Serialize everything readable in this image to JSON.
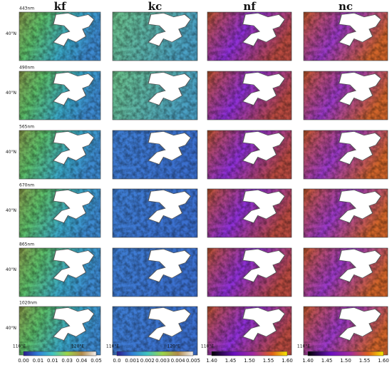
{
  "columns": [
    {
      "title": "kf"
    },
    {
      "title": "kc"
    },
    {
      "title": "nf"
    },
    {
      "title": "nc"
    }
  ],
  "rows": [
    {
      "label": "443nm"
    },
    {
      "label": "490nm"
    },
    {
      "label": "565nm"
    },
    {
      "label": "670nm"
    },
    {
      "label": "865nm"
    },
    {
      "label": "1020nm"
    }
  ],
  "lat_label": "40°N",
  "lon_labels": [
    "110°E",
    "120°E"
  ],
  "colorbars": [
    {
      "ticks": [
        "0.00",
        "0.01",
        "0.01",
        "0.03",
        "0.04",
        "0.05"
      ]
    },
    {
      "ticks": [
        "0.0",
        "0.001",
        "0.002",
        "0.003",
        "0.004",
        "0.005"
      ]
    },
    {
      "ticks": [
        "1.40",
        "1.45",
        "1.50",
        "1.55",
        "1.60"
      ]
    },
    {
      "ticks": [
        "1.40",
        "1.45",
        "1.50",
        "1.55",
        "1.60"
      ]
    }
  ]
}
